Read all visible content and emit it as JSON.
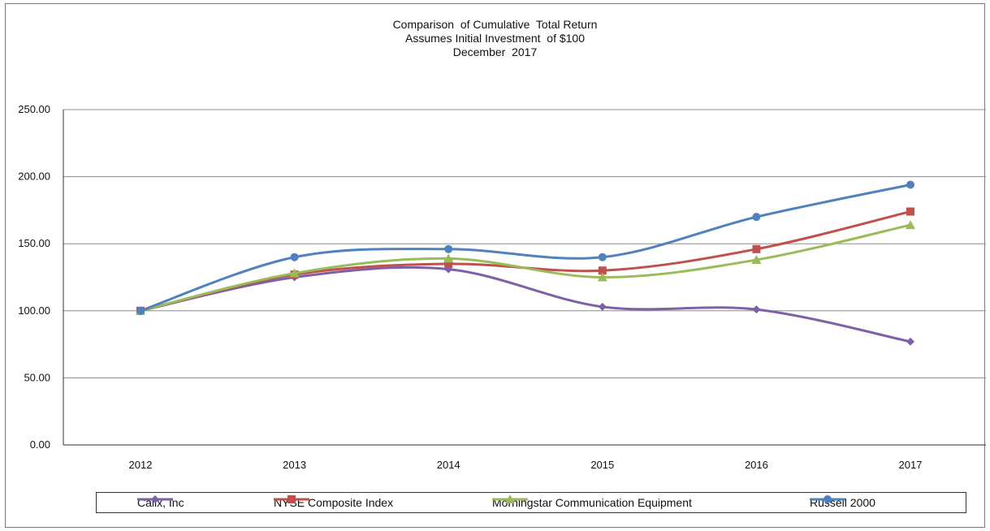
{
  "chart_data": {
    "type": "line",
    "title_lines": [
      "Comparison  of Cumulative  Total Return",
      "Assumes Initial Investment  of $100",
      "December  2017"
    ],
    "categories": [
      "2012",
      "2013",
      "2014",
      "2015",
      "2016",
      "2017"
    ],
    "ylim": [
      0,
      250
    ],
    "yticks": [
      0,
      50,
      100,
      150,
      200,
      250
    ],
    "ytick_labels": [
      "0.00",
      "50.00",
      "100.00",
      "150.00",
      "200.00",
      "250.00"
    ],
    "grid": true,
    "legend_position": "bottom",
    "series": [
      {
        "name": "Calix, Inc",
        "color": "#7f5fa8",
        "marker": "diamond",
        "values": [
          100,
          125,
          131,
          103,
          101,
          77
        ]
      },
      {
        "name": "NYSE Composite Index",
        "color": "#c0504d",
        "marker": "square",
        "values": [
          100,
          127,
          135,
          130,
          146,
          174
        ]
      },
      {
        "name": "Morningstar Communication Equipment",
        "color": "#9bbb59",
        "marker": "triangle",
        "values": [
          100,
          128,
          139,
          125,
          138,
          164
        ]
      },
      {
        "name": "Russell 2000",
        "color": "#4f81bd",
        "marker": "circle",
        "values": [
          100,
          140,
          146,
          140,
          170,
          194
        ]
      }
    ]
  }
}
